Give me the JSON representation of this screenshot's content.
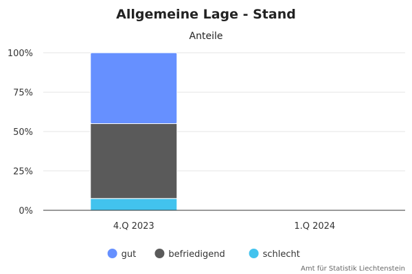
{
  "chart_data": {
    "type": "bar",
    "stacked": true,
    "percent": true,
    "title": "Allgemeine Lage - Stand",
    "subtitle": "Anteile",
    "categories": [
      "4.Q 2023",
      "1.Q 2024"
    ],
    "series": [
      {
        "name": "schlecht",
        "color": "#42c3ee",
        "values": [
          7.5,
          null
        ]
      },
      {
        "name": "befriedigend",
        "color": "#5a5a5a",
        "values": [
          47.5,
          null
        ]
      },
      {
        "name": "gut",
        "color": "#6690ff",
        "values": [
          45,
          null
        ]
      }
    ],
    "legend_order": [
      "gut",
      "befriedigend",
      "schlecht"
    ],
    "yticks": [
      "0%",
      "25%",
      "50%",
      "75%",
      "100%"
    ],
    "ylim": [
      0,
      100
    ],
    "grid": true,
    "legend_position": "bottom",
    "credit": "Amt für Statistik Liechtenstein"
  }
}
